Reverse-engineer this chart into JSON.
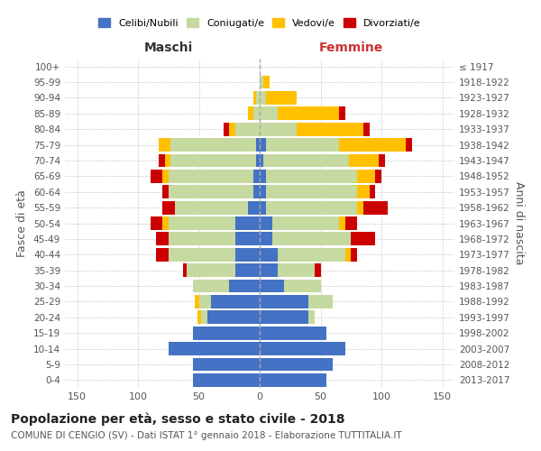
{
  "age_groups": [
    "100+",
    "95-99",
    "90-94",
    "85-89",
    "80-84",
    "75-79",
    "70-74",
    "65-69",
    "60-64",
    "55-59",
    "50-54",
    "45-49",
    "40-44",
    "35-39",
    "30-34",
    "25-29",
    "20-24",
    "15-19",
    "10-14",
    "5-9",
    "0-4"
  ],
  "birth_years": [
    "≤ 1917",
    "1918-1922",
    "1923-1927",
    "1928-1932",
    "1933-1937",
    "1938-1942",
    "1943-1947",
    "1948-1952",
    "1953-1957",
    "1958-1962",
    "1963-1967",
    "1968-1972",
    "1973-1977",
    "1978-1982",
    "1983-1987",
    "1988-1992",
    "1993-1997",
    "1998-2002",
    "2003-2007",
    "2008-2012",
    "2013-2017"
  ],
  "males": {
    "celibe": [
      0,
      0,
      0,
      0,
      0,
      3,
      3,
      5,
      5,
      10,
      20,
      20,
      20,
      20,
      25,
      40,
      43,
      55,
      75,
      55,
      55
    ],
    "coniugato": [
      0,
      0,
      3,
      5,
      20,
      70,
      70,
      70,
      70,
      60,
      55,
      55,
      55,
      40,
      30,
      10,
      5,
      0,
      0,
      0,
      0
    ],
    "vedovo": [
      0,
      0,
      2,
      5,
      5,
      10,
      5,
      5,
      0,
      0,
      5,
      0,
      0,
      0,
      0,
      3,
      3,
      0,
      0,
      0,
      0
    ],
    "divorziato": [
      0,
      0,
      0,
      0,
      5,
      0,
      5,
      10,
      5,
      10,
      10,
      10,
      10,
      3,
      0,
      0,
      0,
      0,
      0,
      0,
      0
    ]
  },
  "females": {
    "nubile": [
      0,
      0,
      0,
      0,
      0,
      5,
      3,
      5,
      5,
      5,
      10,
      10,
      15,
      15,
      20,
      40,
      40,
      55,
      70,
      60,
      55
    ],
    "coniugata": [
      0,
      3,
      5,
      15,
      30,
      60,
      70,
      75,
      75,
      75,
      55,
      65,
      55,
      30,
      30,
      20,
      5,
      0,
      0,
      0,
      0
    ],
    "vedova": [
      0,
      5,
      25,
      50,
      55,
      55,
      25,
      15,
      10,
      5,
      5,
      0,
      5,
      0,
      0,
      0,
      0,
      0,
      0,
      0,
      0
    ],
    "divorziata": [
      0,
      0,
      0,
      5,
      5,
      5,
      5,
      5,
      5,
      20,
      10,
      20,
      5,
      5,
      0,
      0,
      0,
      0,
      0,
      0,
      0
    ]
  },
  "colors": {
    "celibe": "#4472c4",
    "coniugato": "#c5d9a0",
    "vedovo": "#ffc000",
    "divorziato": "#cc0000"
  },
  "title": "Popolazione per età, sesso e stato civile - 2018",
  "subtitle": "COMUNE DI CENGIO (SV) - Dati ISTAT 1° gennaio 2018 - Elaborazione TUTTITALIA.IT",
  "xlabel_left": "Maschi",
  "xlabel_right": "Femmine",
  "ylabel_left": "Fasce di età",
  "ylabel_right": "Anni di nascita",
  "xlim": 160,
  "legend_labels": [
    "Celibi/Nubili",
    "Coniugati/e",
    "Vedovi/e",
    "Divorziati/e"
  ],
  "bg_color": "#ffffff",
  "grid_color": "#cccccc"
}
